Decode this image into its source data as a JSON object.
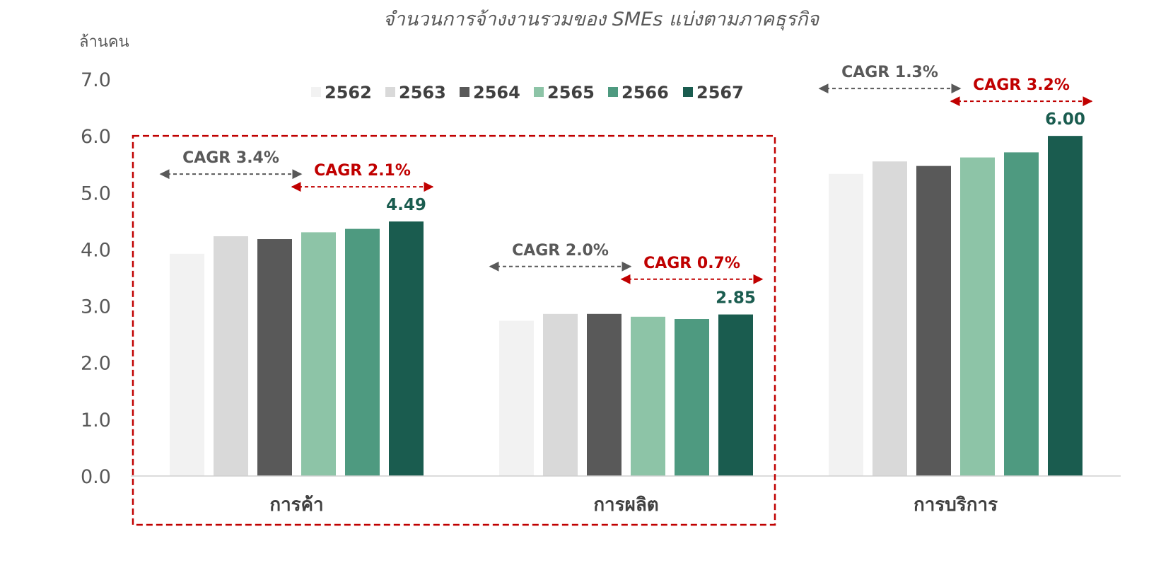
{
  "chart_data": {
    "type": "bar",
    "title": "จำนวนการจ้างงานรวมของ SMEs แบ่งตามภาคธุรกิจ",
    "ylabel": "ล้านคน",
    "ylim": [
      0,
      7
    ],
    "yticks": [
      "0.0",
      "1.0",
      "2.0",
      "3.0",
      "4.0",
      "5.0",
      "6.0",
      "7.0"
    ],
    "legend_position": "top-center",
    "categories": [
      "การค้า",
      "การผลิต",
      "การบริการ"
    ],
    "series": [
      {
        "name": "2562",
        "color": "#f2f2f2",
        "values": [
          3.92,
          2.74,
          5.33
        ]
      },
      {
        "name": "2563",
        "color": "#d9d9d9",
        "values": [
          4.23,
          2.86,
          5.55
        ]
      },
      {
        "name": "2564",
        "color": "#595959",
        "values": [
          4.18,
          2.86,
          5.47
        ]
      },
      {
        "name": "2565",
        "color": "#8dc4a7",
        "values": [
          4.3,
          2.81,
          5.62
        ]
      },
      {
        "name": "2566",
        "color": "#4e9a80",
        "values": [
          4.36,
          2.77,
          5.71
        ]
      },
      {
        "name": "2567",
        "color": "#1a5c4f",
        "values": [
          4.49,
          2.85,
          6.0
        ]
      }
    ],
    "data_labels": [
      "4.49",
      "2.85",
      "6.00"
    ],
    "annotations": [
      {
        "category": 0,
        "text": "CAGR 3.4%",
        "color": "gray",
        "from_series": 0,
        "to_series": 2
      },
      {
        "category": 0,
        "text": "CAGR 2.1%",
        "color": "red",
        "from_series": 3,
        "to_series": 5
      },
      {
        "category": 1,
        "text": "CAGR 2.0%",
        "color": "gray",
        "from_series": 0,
        "to_series": 2
      },
      {
        "category": 1,
        "text": "CAGR 0.7%",
        "color": "red",
        "from_series": 3,
        "to_series": 5
      },
      {
        "category": 2,
        "text": "CAGR 1.3%",
        "color": "gray",
        "from_series": 0,
        "to_series": 2
      },
      {
        "category": 2,
        "text": "CAGR 3.2%",
        "color": "red",
        "from_series": 3,
        "to_series": 5
      }
    ],
    "highlight_box": {
      "categories": [
        0,
        1
      ],
      "color": "#c00000",
      "style": "dashed"
    },
    "grid": false
  }
}
